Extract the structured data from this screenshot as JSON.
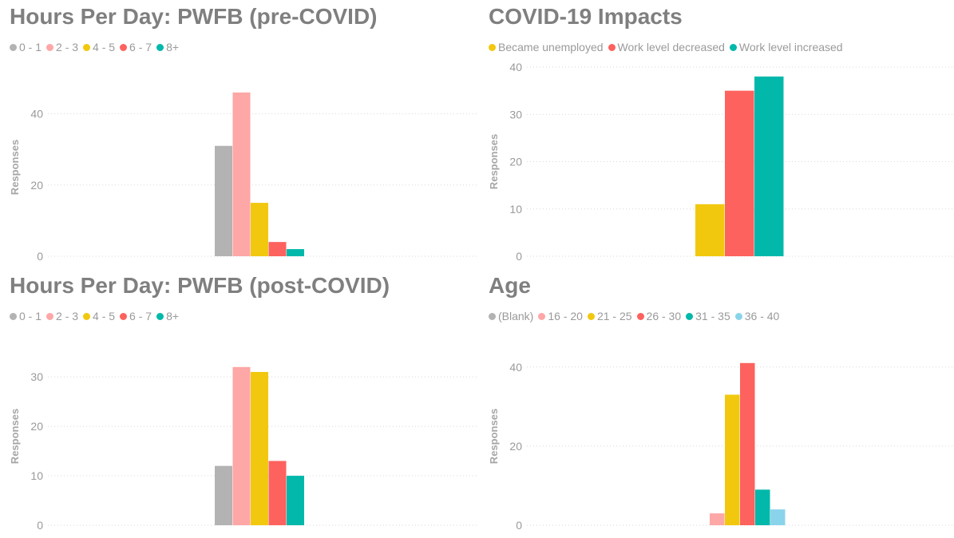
{
  "chart_data": [
    {
      "type": "bar",
      "title": "Hours Per Day: PWFB (pre-COVID)",
      "ylabel": "Responses",
      "xlabel": "",
      "ylim": [
        0,
        50
      ],
      "yticks": [
        0,
        20,
        40
      ],
      "grid": true,
      "legend": "top-left",
      "series": [
        {
          "name": "0 - 1",
          "color": "#b3b3b3",
          "values": [
            31
          ]
        },
        {
          "name": "2 - 3",
          "color": "#fda7a6",
          "values": [
            46
          ]
        },
        {
          "name": "4 - 5",
          "color": "#f2c80f",
          "values": [
            15
          ]
        },
        {
          "name": "6 - 7",
          "color": "#fd625e",
          "values": [
            4
          ]
        },
        {
          "name": "8+",
          "color": "#01b8aa",
          "values": [
            2
          ]
        }
      ]
    },
    {
      "type": "bar",
      "title": "COVID-19 Impacts",
      "ylabel": "Responses",
      "xlabel": "",
      "ylim": [
        0,
        40
      ],
      "yticks": [
        0,
        10,
        20,
        30,
        40
      ],
      "grid": true,
      "legend": "top-left",
      "series": [
        {
          "name": "Became unemployed",
          "color": "#f2c80f",
          "values": [
            11
          ]
        },
        {
          "name": "Work level decreased",
          "color": "#fd625e",
          "values": [
            35
          ]
        },
        {
          "name": "Work level increased",
          "color": "#01b8aa",
          "values": [
            38
          ]
        }
      ]
    },
    {
      "type": "bar",
      "title": "Hours Per Day: PWFB (post-COVID)",
      "ylabel": "Responses",
      "xlabel": "",
      "ylim": [
        0,
        36
      ],
      "yticks": [
        0,
        10,
        20,
        30
      ],
      "grid": true,
      "legend": "top-left",
      "series": [
        {
          "name": "0 - 1",
          "color": "#b3b3b3",
          "values": [
            12
          ]
        },
        {
          "name": "2 - 3",
          "color": "#fda7a6",
          "values": [
            32
          ]
        },
        {
          "name": "4 - 5",
          "color": "#f2c80f",
          "values": [
            31
          ]
        },
        {
          "name": "6 - 7",
          "color": "#fd625e",
          "values": [
            13
          ]
        },
        {
          "name": "8+",
          "color": "#01b8aa",
          "values": [
            10
          ]
        }
      ]
    },
    {
      "type": "bar",
      "title": "Age",
      "ylabel": "Responses",
      "xlabel": "",
      "ylim": [
        0,
        45
      ],
      "yticks": [
        0,
        20,
        40
      ],
      "grid": true,
      "legend": "top-left",
      "series": [
        {
          "name": "(Blank)",
          "color": "#b3b3b3",
          "values": [
            0
          ]
        },
        {
          "name": "16 - 20",
          "color": "#fda7a6",
          "values": [
            3
          ]
        },
        {
          "name": "21 - 25",
          "color": "#f2c80f",
          "values": [
            33
          ]
        },
        {
          "name": "26 - 30",
          "color": "#fd625e",
          "values": [
            41
          ]
        },
        {
          "name": "31 - 35",
          "color": "#01b8aa",
          "values": [
            9
          ]
        },
        {
          "name": "36 - 40",
          "color": "#8ad4eb",
          "values": [
            4
          ]
        }
      ]
    }
  ]
}
